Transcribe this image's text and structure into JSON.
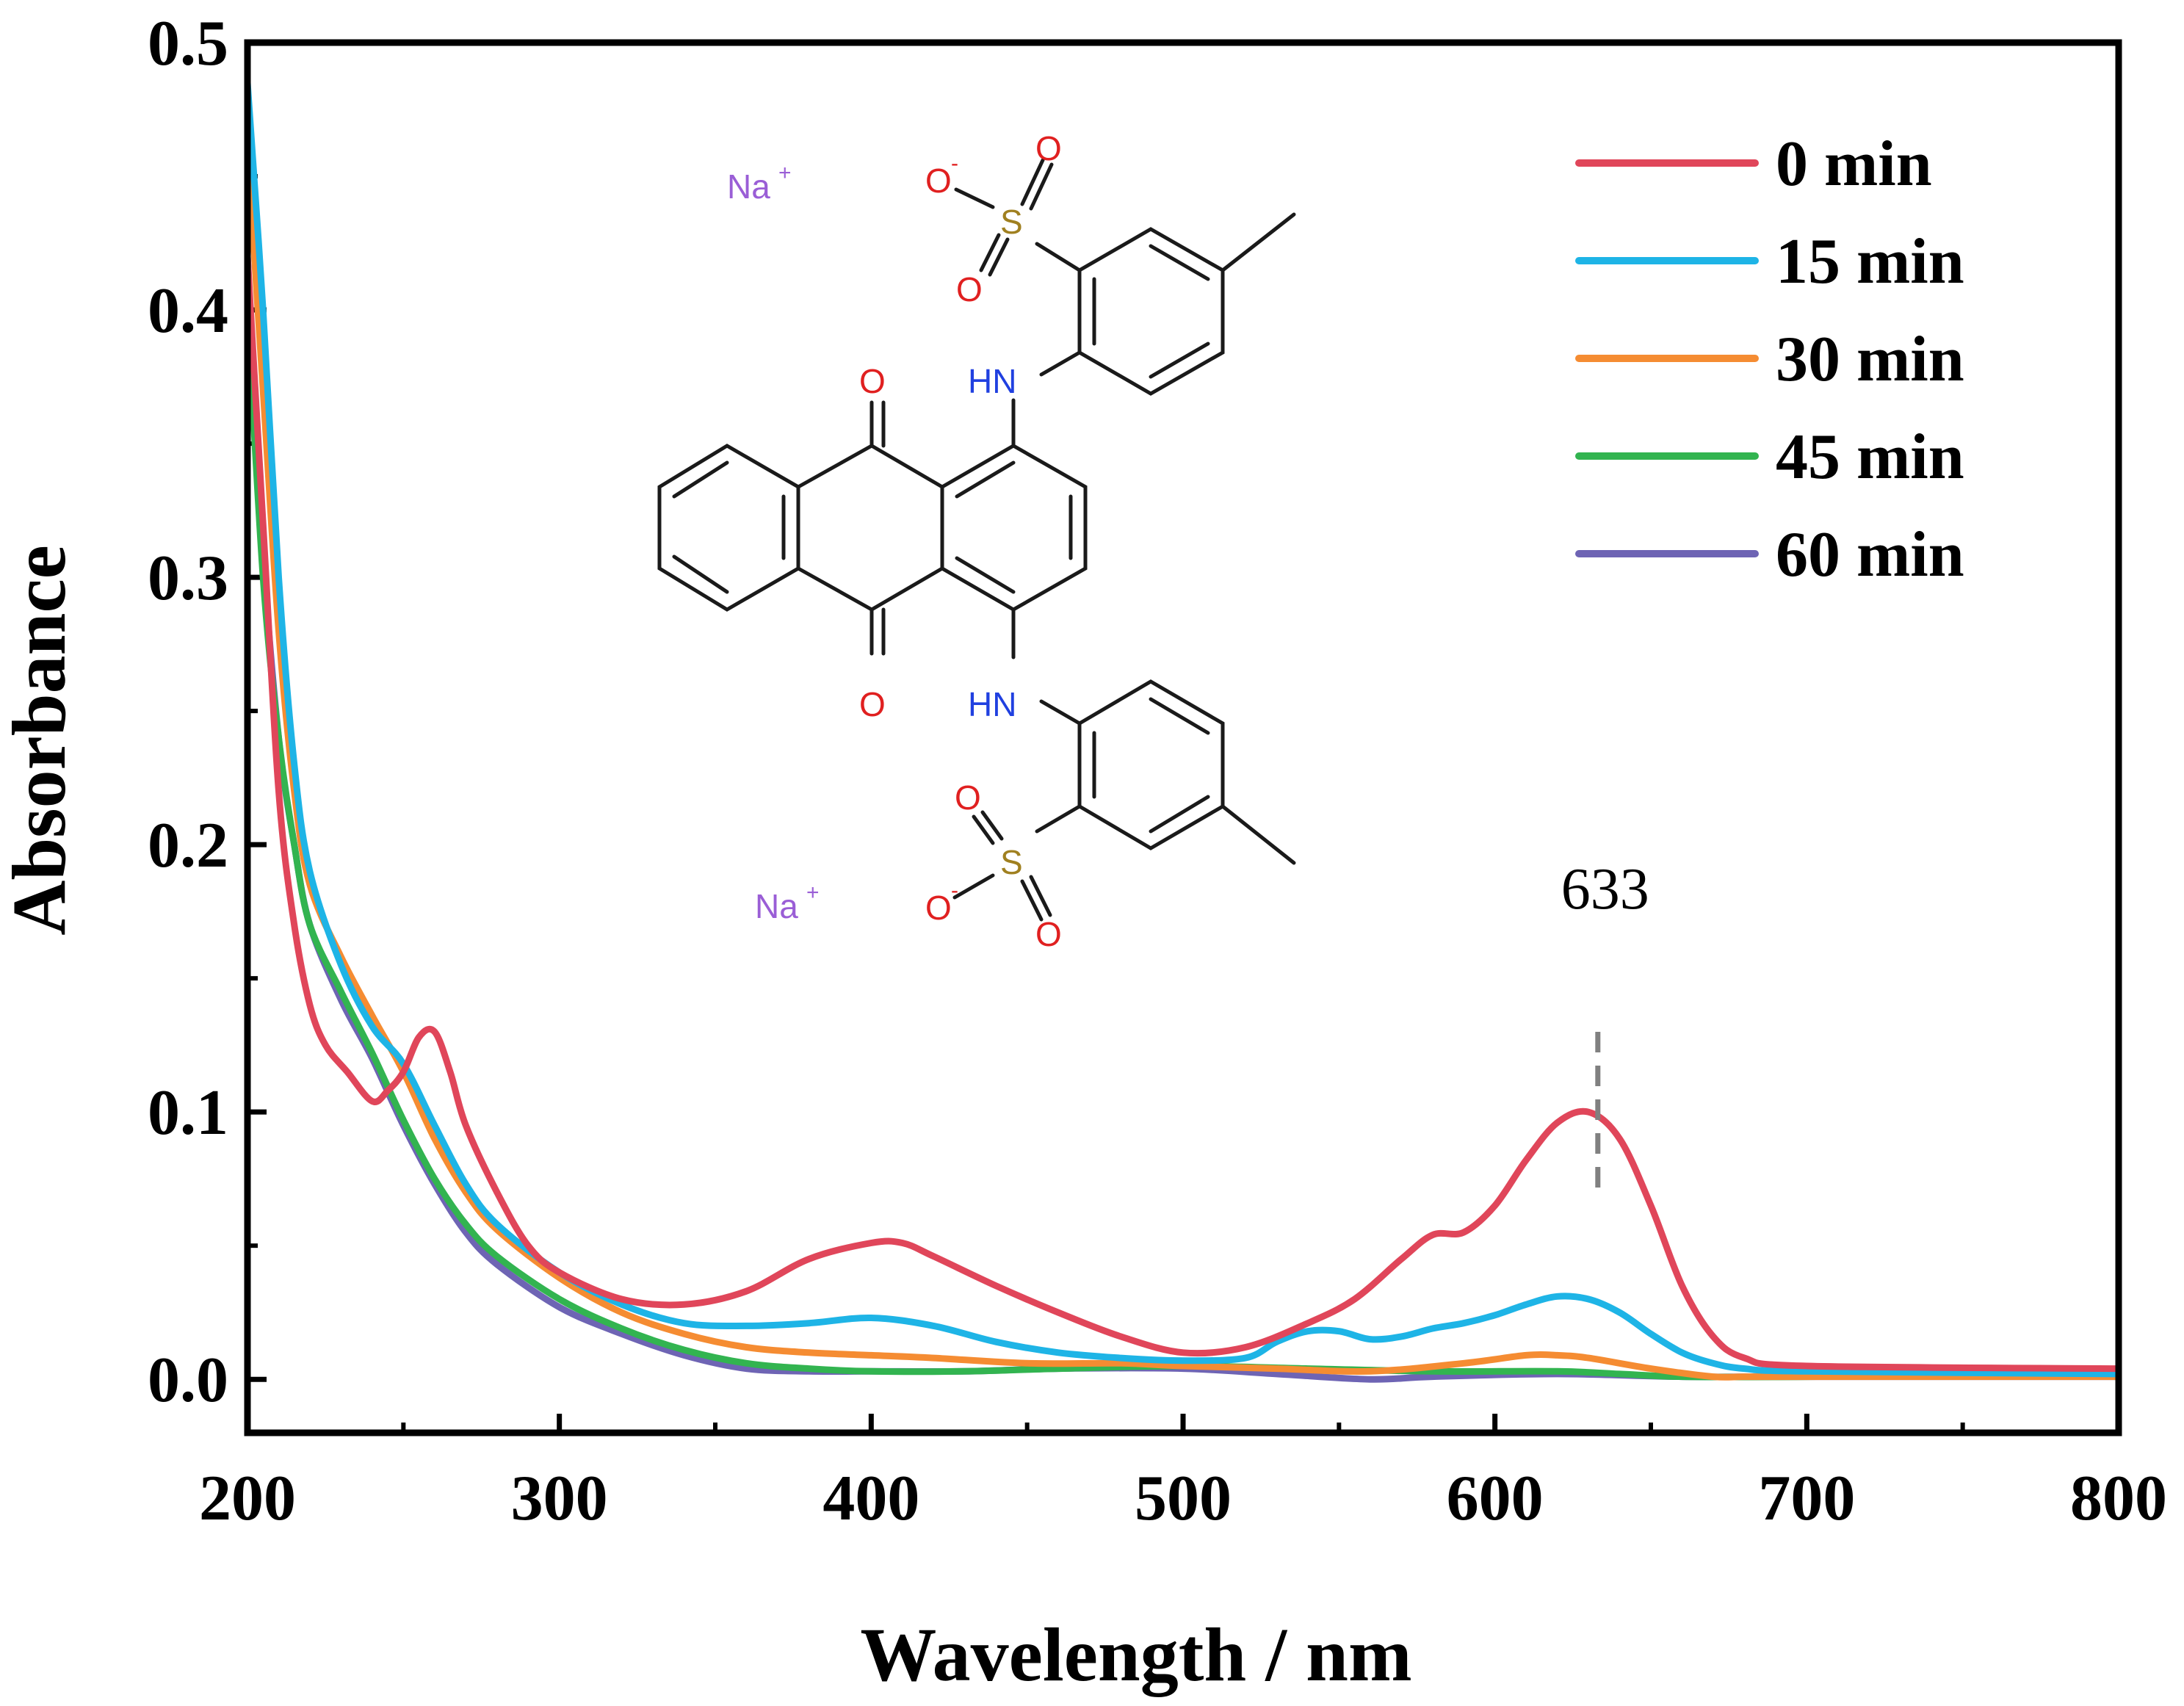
{
  "chart_data": {
    "type": "line",
    "title": "",
    "xlabel": "Wavelength / nm",
    "ylabel": "Absorbance",
    "xlim": [
      200,
      800
    ],
    "ylim": [
      -0.02,
      0.5
    ],
    "xticks": [
      200,
      300,
      400,
      500,
      600,
      700,
      800
    ],
    "xtick_labels": [
      "200",
      "300",
      "400",
      "500",
      "600",
      "700",
      "800"
    ],
    "yticks": [
      0.0,
      0.1,
      0.2,
      0.3,
      0.4,
      0.5
    ],
    "ytick_labels": [
      "0.0",
      "0.1",
      "0.2",
      "0.3",
      "0.4",
      "0.5"
    ],
    "grid": false,
    "legend_position": "top-right",
    "series": [
      {
        "name": "0 min",
        "color": "#e0465a",
        "x": [
          200,
          205,
          210,
          215,
          220,
          225,
          232,
          240,
          245,
          250,
          255,
          260,
          265,
          270,
          280,
          290,
          300,
          320,
          340,
          360,
          380,
          400,
          410,
          420,
          440,
          460,
          480,
          500,
          520,
          540,
          555,
          570,
          580,
          590,
          600,
          610,
          620,
          630,
          640,
          650,
          660,
          670,
          680,
          700,
          800
        ],
        "y": [
          0.42,
          0.32,
          0.22,
          0.17,
          0.14,
          0.125,
          0.115,
          0.104,
          0.108,
          0.115,
          0.128,
          0.13,
          0.115,
          0.095,
          0.07,
          0.05,
          0.04,
          0.03,
          0.028,
          0.033,
          0.045,
          0.051,
          0.051,
          0.046,
          0.035,
          0.025,
          0.016,
          0.01,
          0.012,
          0.021,
          0.03,
          0.045,
          0.054,
          0.055,
          0.065,
          0.082,
          0.096,
          0.1,
          0.09,
          0.065,
          0.035,
          0.016,
          0.008,
          0.005,
          0.004
        ]
      },
      {
        "name": "15 min",
        "color": "#1eb4e6",
        "x": [
          200,
          205,
          210,
          215,
          220,
          230,
          240,
          250,
          260,
          270,
          280,
          300,
          320,
          340,
          360,
          380,
          400,
          420,
          440,
          460,
          480,
          500,
          520,
          530,
          540,
          550,
          560,
          570,
          580,
          590,
          600,
          610,
          620,
          630,
          640,
          650,
          660,
          670,
          680,
          700,
          800
        ],
        "y": [
          0.485,
          0.4,
          0.3,
          0.23,
          0.19,
          0.155,
          0.132,
          0.118,
          0.095,
          0.073,
          0.058,
          0.04,
          0.028,
          0.021,
          0.02,
          0.021,
          0.023,
          0.02,
          0.014,
          0.01,
          0.008,
          0.007,
          0.008,
          0.014,
          0.018,
          0.018,
          0.015,
          0.016,
          0.019,
          0.021,
          0.024,
          0.028,
          0.031,
          0.03,
          0.025,
          0.017,
          0.01,
          0.006,
          0.004,
          0.003,
          0.002
        ]
      },
      {
        "name": "30 min",
        "color": "#f58c32",
        "x": [
          200,
          205,
          210,
          215,
          220,
          230,
          240,
          250,
          260,
          270,
          280,
          300,
          320,
          340,
          360,
          380,
          400,
          420,
          450,
          480,
          500,
          530,
          560,
          590,
          610,
          620,
          630,
          650,
          670,
          680,
          700,
          800
        ],
        "y": [
          0.46,
          0.37,
          0.28,
          0.22,
          0.185,
          0.158,
          0.136,
          0.115,
          0.09,
          0.07,
          0.056,
          0.038,
          0.025,
          0.017,
          0.012,
          0.01,
          0.009,
          0.008,
          0.006,
          0.006,
          0.005,
          0.004,
          0.003,
          0.006,
          0.009,
          0.009,
          0.008,
          0.004,
          0.001,
          0.001,
          0.001,
          0.001
        ]
      },
      {
        "name": "45 min",
        "color": "#32b450",
        "x": [
          200,
          205,
          210,
          215,
          220,
          230,
          240,
          250,
          260,
          270,
          280,
          300,
          320,
          340,
          360,
          380,
          400,
          430,
          460,
          500,
          540,
          580,
          620,
          640,
          660,
          700,
          800
        ],
        "y": [
          0.4,
          0.3,
          0.24,
          0.2,
          0.17,
          0.145,
          0.122,
          0.097,
          0.075,
          0.058,
          0.046,
          0.03,
          0.019,
          0.011,
          0.006,
          0.004,
          0.003,
          0.003,
          0.004,
          0.005,
          0.004,
          0.003,
          0.003,
          0.002,
          0.001,
          0.001,
          0.002
        ]
      },
      {
        "name": "60 min",
        "color": "#6e64b4",
        "x": [
          200,
          205,
          210,
          215,
          220,
          230,
          240,
          250,
          260,
          270,
          280,
          300,
          320,
          340,
          360,
          380,
          400,
          430,
          460,
          500,
          530,
          560,
          580,
          620,
          660,
          700,
          800
        ],
        "y": [
          0.42,
          0.31,
          0.24,
          0.2,
          0.17,
          0.142,
          0.12,
          0.095,
          0.073,
          0.055,
          0.043,
          0.027,
          0.017,
          0.009,
          0.004,
          0.003,
          0.003,
          0.003,
          0.004,
          0.004,
          0.002,
          0.0,
          0.001,
          0.002,
          0.001,
          0.001,
          0.001
        ]
      }
    ],
    "annotations": [
      {
        "text": "633",
        "x": 633,
        "type": "dashed-vertical-marker",
        "y_range": [
          0.068,
          0.13
        ]
      }
    ]
  },
  "molecule": {
    "caption": "chemical structure inset",
    "na_top": "Na",
    "na_bottom": "Na",
    "plus": "+",
    "minus": "-",
    "oxygen": "O",
    "sulfur": "S",
    "amine": "HN"
  },
  "colors": {
    "axis": "#000000",
    "marker": "#808080",
    "oxygen": "#e02020",
    "nitrogen": "#2040e0",
    "sulfur": "#a08020",
    "sodium": "#9a5ed6"
  }
}
